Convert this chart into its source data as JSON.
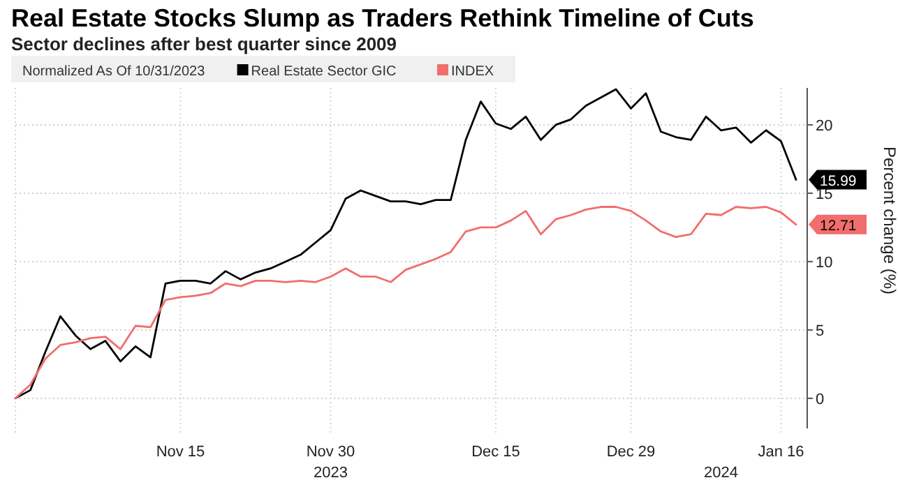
{
  "chart_data": {
    "type": "line",
    "title": "Real Estate Stocks Slump as Traders Rethink Timeline of Cuts",
    "subtitle": "Sector declines after best quarter since 2009",
    "ylabel": "Percent change (%)",
    "legend_title": "Normalized As Of 10/31/2023",
    "legend": "top",
    "categories": [
      null,
      null,
      null,
      null,
      null,
      null,
      null,
      null,
      null,
      null,
      null,
      "Nov 15",
      null,
      null,
      null,
      null,
      null,
      null,
      null,
      null,
      null,
      "Nov 30\n2023",
      null,
      null,
      null,
      null,
      null,
      null,
      null,
      null,
      null,
      null,
      "Dec 15",
      null,
      null,
      null,
      null,
      null,
      null,
      null,
      null,
      "Dec 29",
      null,
      null,
      null,
      null,
      null,
      "\n2024",
      null,
      null,
      null,
      "Jan 16",
      null
    ],
    "series": [
      {
        "name": "Real Estate Sector GIC",
        "color": "#000000",
        "values": [
          0,
          0.6,
          3.4,
          6.0,
          4.6,
          3.6,
          4.2,
          2.7,
          3.8,
          3.0,
          8.4,
          8.6,
          8.6,
          8.4,
          9.3,
          8.7,
          9.2,
          9.5,
          10.0,
          10.5,
          11.4,
          12.3,
          14.6,
          15.2,
          14.8,
          14.4,
          14.4,
          14.2,
          14.5,
          14.5,
          18.9,
          21.7,
          20.1,
          19.7,
          20.6,
          18.9,
          20.0,
          20.4,
          21.4,
          22.0,
          22.6,
          21.2,
          22.3,
          19.5,
          19.1,
          18.9,
          20.6,
          19.6,
          19.8,
          18.7,
          19.6,
          18.8,
          15.99
        ],
        "value_labels": [
          null,
          null,
          null,
          null,
          null,
          null,
          null,
          null,
          null,
          null,
          null,
          null,
          null,
          null,
          null,
          null,
          null,
          null,
          null,
          null,
          null,
          null,
          null,
          null,
          null,
          null,
          null,
          null,
          null,
          null,
          null,
          null,
          null,
          null,
          null,
          null,
          null,
          null,
          null,
          null,
          null,
          null,
          null,
          null,
          null,
          null,
          null,
          null,
          null,
          null,
          null,
          null,
          "15.99"
        ]
      },
      {
        "name": "INDEX",
        "color": "#f26d6d",
        "values": [
          0,
          1.0,
          2.9,
          3.9,
          4.1,
          4.4,
          4.5,
          3.6,
          5.3,
          5.2,
          7.2,
          7.4,
          7.5,
          7.7,
          8.4,
          8.2,
          8.6,
          8.6,
          8.5,
          8.6,
          8.5,
          8.9,
          9.5,
          8.9,
          8.9,
          8.5,
          9.4,
          9.8,
          10.2,
          10.7,
          12.2,
          12.5,
          12.5,
          13.0,
          13.7,
          12.0,
          13.1,
          13.4,
          13.8,
          14.0,
          14.0,
          13.7,
          13.0,
          12.2,
          11.8,
          12.0,
          13.5,
          13.4,
          14.0,
          13.9,
          14.0,
          13.6,
          12.71
        ],
        "value_labels": [
          null,
          null,
          null,
          null,
          null,
          null,
          null,
          null,
          null,
          null,
          null,
          null,
          null,
          null,
          null,
          null,
          null,
          null,
          null,
          null,
          null,
          null,
          null,
          null,
          null,
          null,
          null,
          null,
          null,
          null,
          null,
          null,
          null,
          null,
          null,
          null,
          null,
          null,
          null,
          null,
          null,
          null,
          null,
          null,
          null,
          null,
          null,
          null,
          null,
          null,
          null,
          null,
          "12.71"
        ]
      }
    ],
    "ylim": [
      -2.2,
      22.7
    ],
    "yticks": [
      0,
      5,
      10,
      15,
      20
    ],
    "grid": true,
    "marker": "none",
    "line_style": "solid"
  }
}
